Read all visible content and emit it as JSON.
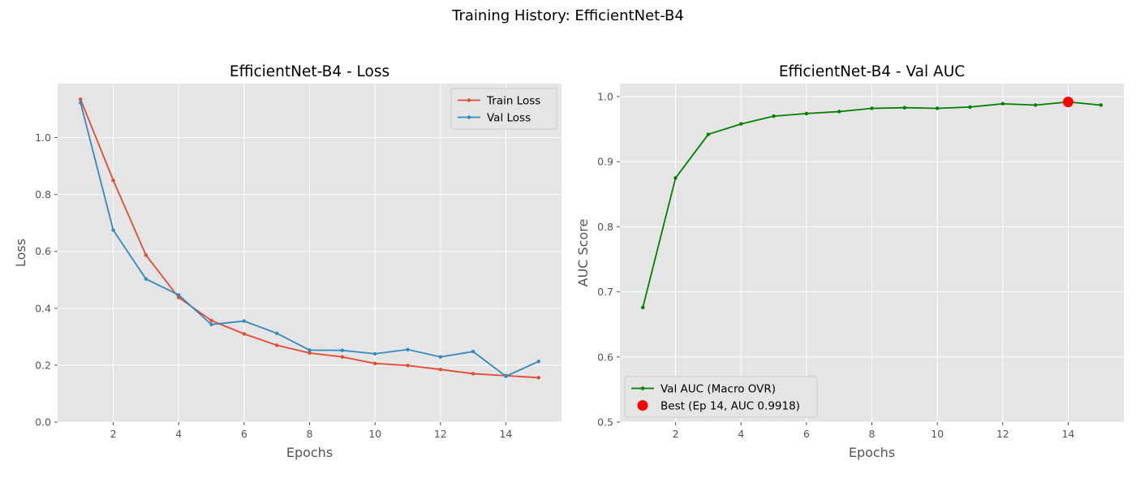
{
  "figure": {
    "suptitle": "Training History: EfficientNet-B4"
  },
  "chart_data": [
    {
      "type": "line",
      "title": "EfficientNet-B4 - Loss",
      "xlabel": "Epochs",
      "ylabel": "Loss",
      "xlim": [
        0.3,
        15.7
      ],
      "ylim": [
        0,
        1.19
      ],
      "xticks": [
        2,
        4,
        6,
        8,
        10,
        12,
        14
      ],
      "yticks": [
        0.0,
        0.2,
        0.4,
        0.6,
        0.8,
        1.0
      ],
      "x": [
        1,
        2,
        3,
        4,
        5,
        6,
        7,
        8,
        9,
        10,
        11,
        12,
        13,
        14,
        15
      ],
      "grid": true,
      "legend_position": "upper-right",
      "series": [
        {
          "name": "Train Loss",
          "color": "#E24A33",
          "values": [
            1.135,
            0.85,
            0.587,
            0.438,
            0.357,
            0.31,
            0.27,
            0.243,
            0.229,
            0.206,
            0.199,
            0.185,
            0.17,
            0.163,
            0.156
          ]
        },
        {
          "name": "Val Loss",
          "color": "#348ABD",
          "values": [
            1.123,
            0.675,
            0.503,
            0.447,
            0.343,
            0.355,
            0.312,
            0.253,
            0.252,
            0.24,
            0.255,
            0.229,
            0.248,
            0.161,
            0.213
          ]
        }
      ]
    },
    {
      "type": "line",
      "title": "EfficientNet-B4 - Val AUC",
      "xlabel": "Epochs",
      "ylabel": "AUC Score",
      "xlim": [
        0.3,
        15.7
      ],
      "ylim": [
        0.5,
        1.02
      ],
      "xticks": [
        2,
        4,
        6,
        8,
        10,
        12,
        14
      ],
      "yticks": [
        0.5,
        0.6,
        0.7,
        0.8,
        0.9,
        1.0
      ],
      "x": [
        1,
        2,
        3,
        4,
        5,
        6,
        7,
        8,
        9,
        10,
        11,
        12,
        13,
        14,
        15
      ],
      "grid": true,
      "legend_position": "lower-left",
      "series": [
        {
          "name": "Val AUC (Macro OVR)",
          "color": "#008000",
          "values": [
            0.676,
            0.875,
            0.942,
            0.958,
            0.97,
            0.974,
            0.977,
            0.982,
            0.983,
            0.982,
            0.984,
            0.989,
            0.987,
            0.9918,
            0.987
          ]
        }
      ],
      "markers": [
        {
          "name": "Best (Ep 14, AUC 0.9918)",
          "x": 14,
          "y": 0.9918,
          "color": "#FF0000"
        }
      ]
    }
  ]
}
